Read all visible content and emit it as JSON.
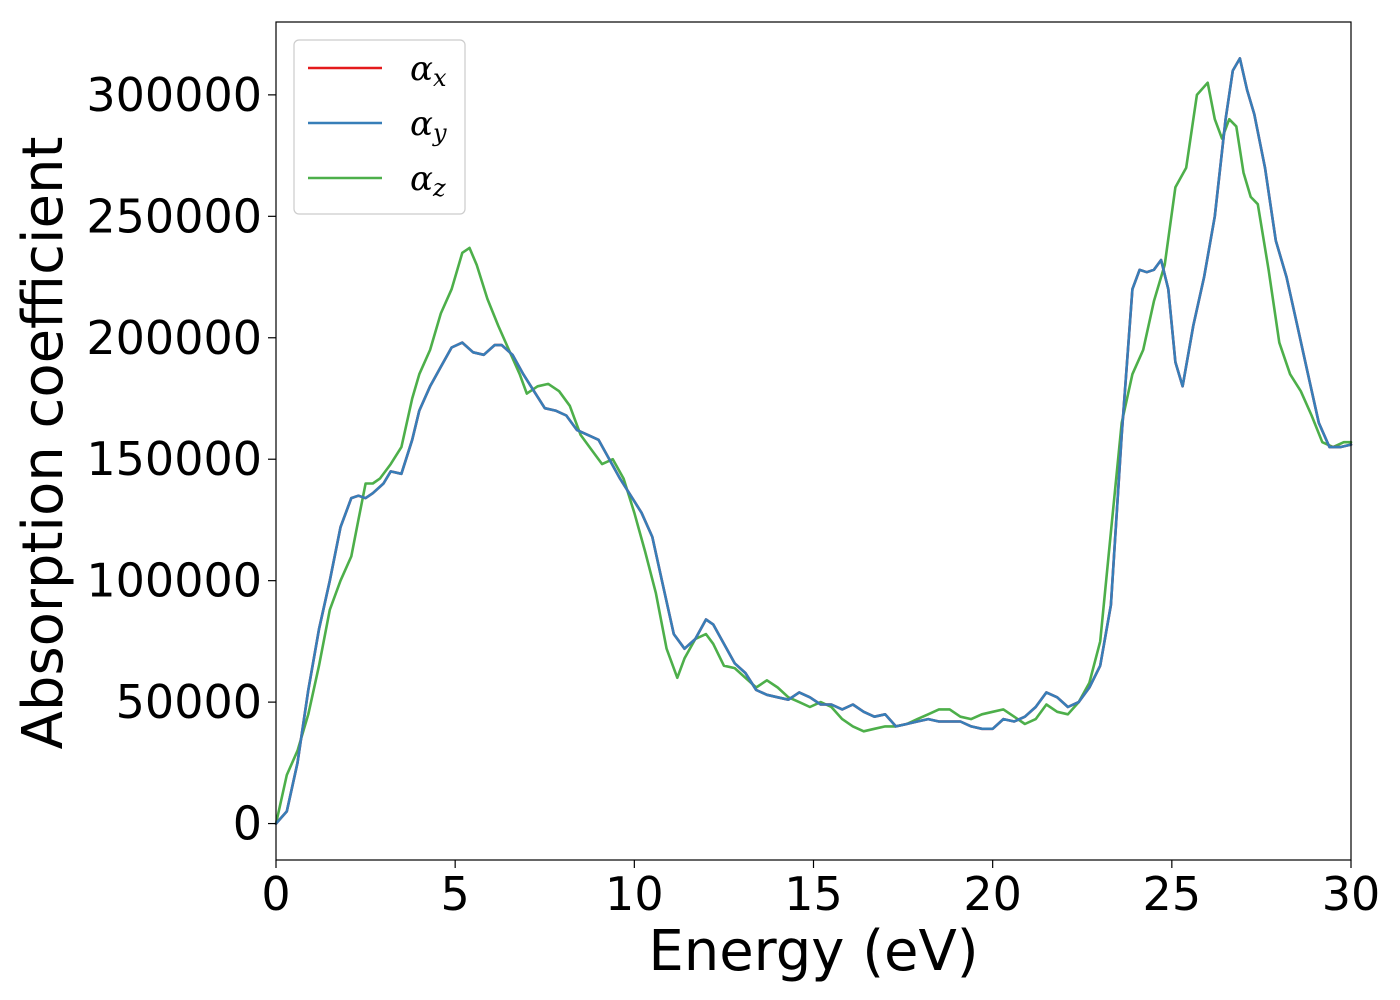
{
  "chart_data": {
    "type": "line",
    "xlabel": "Energy (eV)",
    "ylabel": "Absorption coefficient",
    "xlim": [
      0,
      30
    ],
    "ylim": [
      -15000,
      330000
    ],
    "xticks": [
      0,
      5,
      10,
      15,
      20,
      25,
      30
    ],
    "yticks": [
      0,
      50000,
      100000,
      150000,
      200000,
      250000,
      300000
    ],
    "grid": false,
    "legend_position": "top-left",
    "series": [
      {
        "name": "αx",
        "name_main": "α",
        "name_sub": "x",
        "color": "#e41a1c",
        "x": [
          0,
          0.3,
          0.6,
          0.9,
          1.2,
          1.5,
          1.8,
          2.1,
          2.3,
          2.5,
          2.7,
          3.0,
          3.2,
          3.5,
          3.8,
          4.0,
          4.3,
          4.6,
          4.9,
          5.2,
          5.5,
          5.8,
          6.1,
          6.3,
          6.6,
          6.9,
          7.2,
          7.5,
          7.8,
          8.1,
          8.4,
          8.7,
          9.0,
          9.3,
          9.6,
          9.9,
          10.2,
          10.5,
          10.8,
          11.1,
          11.4,
          11.7,
          12.0,
          12.2,
          12.5,
          12.8,
          13.1,
          13.4,
          13.7,
          14.0,
          14.3,
          14.6,
          14.9,
          15.2,
          15.5,
          15.8,
          16.1,
          16.4,
          16.7,
          17.0,
          17.3,
          17.6,
          17.9,
          18.2,
          18.5,
          18.8,
          19.1,
          19.4,
          19.7,
          20.0,
          20.3,
          20.6,
          20.9,
          21.2,
          21.5,
          21.8,
          22.1,
          22.4,
          22.7,
          23.0,
          23.3,
          23.6,
          23.9,
          24.1,
          24.3,
          24.5,
          24.7,
          24.9,
          25.1,
          25.3,
          25.6,
          25.9,
          26.2,
          26.5,
          26.7,
          26.9,
          27.1,
          27.3,
          27.6,
          27.9,
          28.2,
          28.5,
          28.8,
          29.1,
          29.4,
          29.7,
          30.0
        ],
        "values": [
          0,
          5000,
          25000,
          55000,
          80000,
          100000,
          122000,
          134000,
          135000,
          134000,
          136000,
          140000,
          145000,
          144000,
          158000,
          170000,
          180000,
          188000,
          196000,
          198000,
          194000,
          193000,
          197000,
          197000,
          193000,
          185000,
          178000,
          171000,
          170000,
          168000,
          162000,
          160000,
          158000,
          150000,
          142000,
          135000,
          128000,
          118000,
          98000,
          78000,
          72000,
          76000,
          84000,
          82000,
          74000,
          66000,
          62000,
          55000,
          53000,
          52000,
          51000,
          54000,
          52000,
          49000,
          49000,
          47000,
          49000,
          46000,
          44000,
          45000,
          40000,
          41000,
          42000,
          43000,
          42000,
          42000,
          42000,
          40000,
          39000,
          39000,
          43000,
          42000,
          44000,
          48000,
          54000,
          52000,
          48000,
          50000,
          56000,
          65000,
          90000,
          160000,
          220000,
          228000,
          227000,
          228000,
          232000,
          220000,
          190000,
          180000,
          205000,
          225000,
          250000,
          290000,
          310000,
          315000,
          302000,
          292000,
          270000,
          240000,
          225000,
          205000,
          185000,
          165000,
          155000,
          155000,
          156000
        ]
      },
      {
        "name": "αy",
        "name_main": "α",
        "name_sub": "y",
        "color": "#377eb8",
        "x": [
          0,
          0.3,
          0.6,
          0.9,
          1.2,
          1.5,
          1.8,
          2.1,
          2.3,
          2.5,
          2.7,
          3.0,
          3.2,
          3.5,
          3.8,
          4.0,
          4.3,
          4.6,
          4.9,
          5.2,
          5.5,
          5.8,
          6.1,
          6.3,
          6.6,
          6.9,
          7.2,
          7.5,
          7.8,
          8.1,
          8.4,
          8.7,
          9.0,
          9.3,
          9.6,
          9.9,
          10.2,
          10.5,
          10.8,
          11.1,
          11.4,
          11.7,
          12.0,
          12.2,
          12.5,
          12.8,
          13.1,
          13.4,
          13.7,
          14.0,
          14.3,
          14.6,
          14.9,
          15.2,
          15.5,
          15.8,
          16.1,
          16.4,
          16.7,
          17.0,
          17.3,
          17.6,
          17.9,
          18.2,
          18.5,
          18.8,
          19.1,
          19.4,
          19.7,
          20.0,
          20.3,
          20.6,
          20.9,
          21.2,
          21.5,
          21.8,
          22.1,
          22.4,
          22.7,
          23.0,
          23.3,
          23.6,
          23.9,
          24.1,
          24.3,
          24.5,
          24.7,
          24.9,
          25.1,
          25.3,
          25.6,
          25.9,
          26.2,
          26.5,
          26.7,
          26.9,
          27.1,
          27.3,
          27.6,
          27.9,
          28.2,
          28.5,
          28.8,
          29.1,
          29.4,
          29.7,
          30.0
        ],
        "values": [
          0,
          5000,
          25000,
          55000,
          80000,
          100000,
          122000,
          134000,
          135000,
          134000,
          136000,
          140000,
          145000,
          144000,
          158000,
          170000,
          180000,
          188000,
          196000,
          198000,
          194000,
          193000,
          197000,
          197000,
          193000,
          185000,
          178000,
          171000,
          170000,
          168000,
          162000,
          160000,
          158000,
          150000,
          142000,
          135000,
          128000,
          118000,
          98000,
          78000,
          72000,
          76000,
          84000,
          82000,
          74000,
          66000,
          62000,
          55000,
          53000,
          52000,
          51000,
          54000,
          52000,
          49000,
          49000,
          47000,
          49000,
          46000,
          44000,
          45000,
          40000,
          41000,
          42000,
          43000,
          42000,
          42000,
          42000,
          40000,
          39000,
          39000,
          43000,
          42000,
          44000,
          48000,
          54000,
          52000,
          48000,
          50000,
          56000,
          65000,
          90000,
          160000,
          220000,
          228000,
          227000,
          228000,
          232000,
          220000,
          190000,
          180000,
          205000,
          225000,
          250000,
          290000,
          310000,
          315000,
          302000,
          292000,
          270000,
          240000,
          225000,
          205000,
          185000,
          165000,
          155000,
          155000,
          156000
        ]
      },
      {
        "name": "αz",
        "name_main": "α",
        "name_sub": "z",
        "color": "#4daf4a",
        "x": [
          0,
          0.3,
          0.6,
          0.9,
          1.2,
          1.5,
          1.8,
          2.1,
          2.3,
          2.5,
          2.7,
          2.9,
          3.2,
          3.5,
          3.8,
          4.0,
          4.3,
          4.6,
          4.9,
          5.2,
          5.4,
          5.6,
          5.9,
          6.2,
          6.5,
          6.8,
          7.0,
          7.3,
          7.6,
          7.9,
          8.2,
          8.5,
          8.8,
          9.1,
          9.4,
          9.7,
          10.0,
          10.3,
          10.6,
          10.9,
          11.2,
          11.4,
          11.7,
          12.0,
          12.2,
          12.5,
          12.8,
          13.1,
          13.4,
          13.7,
          14.0,
          14.3,
          14.6,
          14.9,
          15.2,
          15.5,
          15.8,
          16.1,
          16.4,
          16.7,
          17.0,
          17.3,
          17.6,
          17.9,
          18.2,
          18.5,
          18.8,
          19.1,
          19.4,
          19.7,
          20.0,
          20.3,
          20.6,
          20.9,
          21.2,
          21.5,
          21.8,
          22.1,
          22.4,
          22.7,
          23.0,
          23.3,
          23.6,
          23.9,
          24.2,
          24.5,
          24.8,
          25.1,
          25.4,
          25.7,
          26.0,
          26.2,
          26.4,
          26.6,
          26.8,
          27.0,
          27.2,
          27.4,
          27.7,
          28.0,
          28.3,
          28.6,
          28.9,
          29.2,
          29.5,
          29.8,
          30.0
        ],
        "values": [
          0,
          20000,
          30000,
          45000,
          65000,
          88000,
          100000,
          110000,
          125000,
          140000,
          140000,
          142000,
          148000,
          155000,
          175000,
          185000,
          195000,
          210000,
          220000,
          235000,
          237000,
          230000,
          216000,
          205000,
          195000,
          185000,
          177000,
          180000,
          181000,
          178000,
          172000,
          160000,
          154000,
          148000,
          150000,
          142000,
          128000,
          112000,
          95000,
          72000,
          60000,
          68000,
          76000,
          78000,
          74000,
          65000,
          64000,
          60000,
          56000,
          59000,
          56000,
          52000,
          50000,
          48000,
          50000,
          48000,
          43000,
          40000,
          38000,
          39000,
          40000,
          40000,
          41000,
          43000,
          45000,
          47000,
          47000,
          44000,
          43000,
          45000,
          46000,
          47000,
          44000,
          41000,
          43000,
          49000,
          46000,
          45000,
          50000,
          58000,
          75000,
          120000,
          165000,
          185000,
          195000,
          215000,
          230000,
          262000,
          270000,
          300000,
          305000,
          290000,
          282000,
          290000,
          287000,
          268000,
          258000,
          255000,
          228000,
          198000,
          185000,
          178000,
          168000,
          157000,
          155000,
          157000,
          157000
        ]
      }
    ]
  }
}
